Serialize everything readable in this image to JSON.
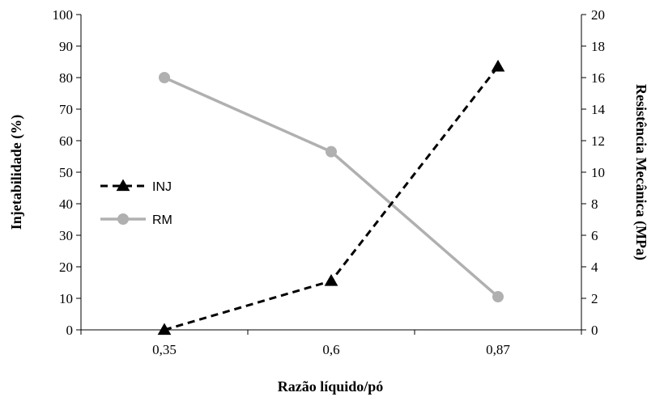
{
  "chart_data": {
    "type": "line",
    "categories": [
      "0,35",
      "0,6",
      "0,87"
    ],
    "xlabel": "Razão líquido/pó",
    "ylabel": "Injetabilidade (%)",
    "y2label": "Resistência Mecânica (MPa)",
    "ylim": [
      0,
      100
    ],
    "y2lim": [
      0,
      20
    ],
    "yticks": [
      "0",
      "10",
      "20",
      "30",
      "40",
      "50",
      "60",
      "70",
      "80",
      "90",
      "100"
    ],
    "y2ticks": [
      "0",
      "2",
      "4",
      "6",
      "8",
      "10",
      "12",
      "14",
      "16",
      "18",
      "20"
    ],
    "grid": false,
    "legend_position": "left-middle",
    "series": [
      {
        "name": "INJ",
        "axis": "left",
        "values": [
          0,
          15.5,
          83.5
        ],
        "color": "#000000",
        "line_style": "dashed",
        "marker": "triangle"
      },
      {
        "name": "RM",
        "axis": "right",
        "values": [
          16,
          11.3,
          2.1
        ],
        "color": "#b0b0b0",
        "line_style": "solid",
        "marker": "circle"
      }
    ]
  }
}
